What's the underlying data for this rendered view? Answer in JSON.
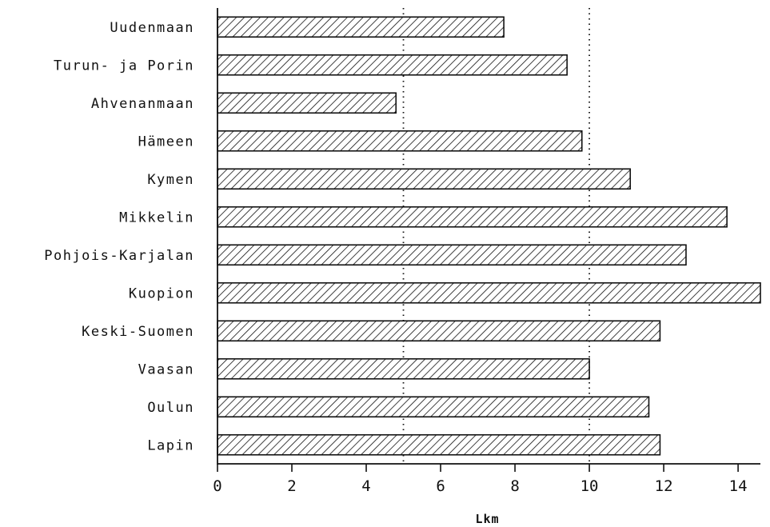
{
  "chart_data": {
    "type": "bar",
    "orientation": "horizontal",
    "categories": [
      "Uudenmaan",
      "Turun- ja Porin",
      "Ahvenanmaan",
      "Hämeen",
      "Kymen",
      "Mikkelin",
      "Pohjois-Karjalan",
      "Kuopion",
      "Keski-Suomen",
      "Vaasan",
      "Oulun",
      "Lapin"
    ],
    "values": [
      7.7,
      9.4,
      4.8,
      9.8,
      11.1,
      13.7,
      12.6,
      14.6,
      11.9,
      10.0,
      11.6,
      11.9
    ],
    "xlabel": "Lkm",
    "xlim": [
      0,
      14.6
    ],
    "xticks": [
      0,
      2,
      4,
      6,
      8,
      10,
      12,
      14
    ],
    "xtick_labels": [
      "0",
      "2",
      "4",
      "6",
      "8",
      "10",
      "12",
      "14"
    ],
    "reference_lines": [
      5,
      10
    ],
    "grid": false,
    "bar_fill": "diagonal-hatch",
    "colors": {
      "ink": "#111111",
      "background": "#ffffff"
    }
  }
}
